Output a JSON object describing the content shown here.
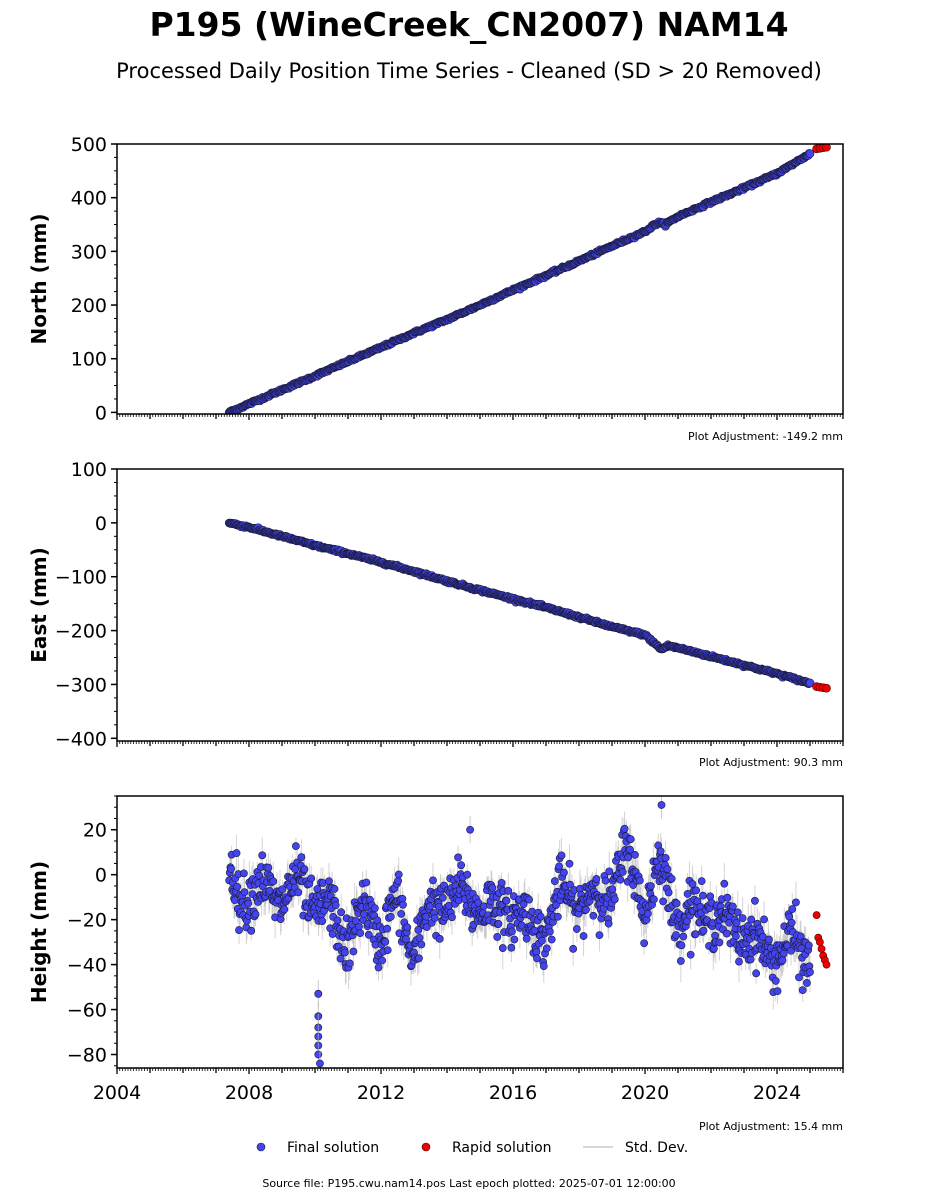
{
  "title": "P195 (WineCreek_CN2007) NAM14",
  "subtitle": "Processed Daily Position Time Series - Cleaned (SD > 20 Removed)",
  "colors": {
    "final": "#4444ee",
    "final_edge": "#1a1a3a",
    "rapid": "#ee0000",
    "stddev": "#b0b0b0",
    "axis": "#000000"
  },
  "chart_data": [
    {
      "type": "scatter",
      "panel": "north",
      "ylabel": "North (mm)",
      "xlim": [
        2004,
        2026
      ],
      "ylim": [
        -3,
        500
      ],
      "yticks": [
        0,
        100,
        200,
        300,
        400,
        500
      ],
      "ytick_labels": [
        "0",
        "100",
        "200",
        "300",
        "400",
        "500"
      ],
      "xtick_labels": [],
      "adjustment": "Plot Adjustment: -149.2 mm",
      "series": [
        {
          "name": "Final solution",
          "x": [
            2007.4,
            2008.0,
            2009.0,
            2010.0,
            2011.0,
            2012.0,
            2013.0,
            2014.0,
            2015.0,
            2016.0,
            2017.0,
            2018.0,
            2019.0,
            2020.0,
            2020.4,
            2020.6,
            2021.0,
            2022.0,
            2023.0,
            2024.0,
            2025.0
          ],
          "y": [
            0,
            16,
            42,
            68,
            95,
            121,
            148,
            173,
            200,
            228,
            255,
            282,
            310,
            337,
            354,
            350,
            365,
            392,
            418,
            445,
            482
          ]
        },
        {
          "name": "Rapid solution",
          "x": [
            2025.2,
            2025.3,
            2025.4,
            2025.5
          ],
          "y": [
            491,
            492,
            493,
            494
          ]
        }
      ]
    },
    {
      "type": "scatter",
      "panel": "east",
      "ylabel": "East (mm)",
      "xlim": [
        2004,
        2026
      ],
      "ylim": [
        -405,
        100
      ],
      "yticks": [
        100,
        0,
        -100,
        -200,
        -300,
        -400
      ],
      "ytick_labels": [
        "100",
        "0",
        "−100",
        "−200",
        "−300",
        "−400"
      ],
      "xtick_labels": [],
      "adjustment": "Plot Adjustment: 90.3 mm",
      "series": [
        {
          "name": "Final solution",
          "x": [
            2007.4,
            2008.0,
            2009.0,
            2010.0,
            2011.0,
            2012.0,
            2013.0,
            2014.0,
            2015.0,
            2016.0,
            2017.0,
            2018.0,
            2019.0,
            2020.0,
            2020.5,
            2020.7,
            2021.0,
            2022.0,
            2023.0,
            2024.0,
            2025.0
          ],
          "y": [
            0,
            -8,
            -25,
            -42,
            -57,
            -73,
            -90,
            -108,
            -125,
            -141,
            -157,
            -175,
            -193,
            -208,
            -235,
            -228,
            -232,
            -248,
            -264,
            -280,
            -298
          ]
        },
        {
          "name": "Rapid solution",
          "x": [
            2025.2,
            2025.3,
            2025.4,
            2025.5
          ],
          "y": [
            -304,
            -305,
            -306,
            -307
          ]
        }
      ]
    },
    {
      "type": "scatter",
      "panel": "height",
      "ylabel": "Height (mm)",
      "xlim": [
        2004,
        2026
      ],
      "ylim": [
        -86,
        35
      ],
      "yticks": [
        20,
        0,
        -20,
        -40,
        -60,
        -80
      ],
      "ytick_labels": [
        "20",
        "0",
        "−20",
        "−40",
        "−60",
        "−80"
      ],
      "xticks": [
        2004,
        2008,
        2012,
        2016,
        2020,
        2024
      ],
      "xtick_labels": [
        "2004",
        "2008",
        "2012",
        "2016",
        "2020",
        "2024"
      ],
      "adjustment": "Plot Adjustment: 15.4 mm",
      "series": [
        {
          "name": "Final solution",
          "x": [
            2007.4,
            2007.7,
            2008.0,
            2008.5,
            2009.0,
            2009.5,
            2010.0,
            2010.5,
            2011.0,
            2011.5,
            2012.0,
            2012.5,
            2013.0,
            2013.5,
            2014.0,
            2014.5,
            2015.0,
            2015.5,
            2016.0,
            2016.5,
            2017.0,
            2017.5,
            2018.0,
            2018.5,
            2019.0,
            2019.5,
            2020.0,
            2020.5,
            2021.0,
            2021.5,
            2022.0,
            2022.5,
            2023.0,
            2023.5,
            2024.0,
            2024.5,
            2025.0
          ],
          "y": [
            -4,
            -10,
            -2,
            -12,
            -5,
            -10,
            -8,
            -22,
            -25,
            -20,
            -22,
            -18,
            -30,
            -20,
            -6,
            -15,
            -8,
            -22,
            -10,
            -28,
            -20,
            -12,
            -8,
            -15,
            -2,
            5,
            -10,
            0,
            -15,
            -22,
            -12,
            -28,
            -20,
            -38,
            -30,
            -35,
            -32
          ]
        },
        {
          "name": "Final solution outliers",
          "x": [
            2010.1,
            2010.1,
            2010.1,
            2010.1,
            2010.1,
            2010.1,
            2010.15,
            2014.7,
            2020.5
          ],
          "y": [
            -53,
            -63,
            -68,
            -72,
            -76,
            -80,
            -84,
            20,
            31
          ]
        },
        {
          "name": "Rapid solution",
          "x": [
            2025.2,
            2025.25,
            2025.3,
            2025.35,
            2025.4,
            2025.45,
            2025.5
          ],
          "y": [
            -18,
            -28,
            -30,
            -33,
            -36,
            -38,
            -40
          ]
        }
      ]
    }
  ],
  "legend": {
    "final": "Final solution",
    "rapid": "Rapid solution",
    "stddev": "Std. Dev."
  },
  "footer": "Source file: P195.cwu.nam14.pos  Last epoch plotted: 2025-07-01 12:00:00"
}
